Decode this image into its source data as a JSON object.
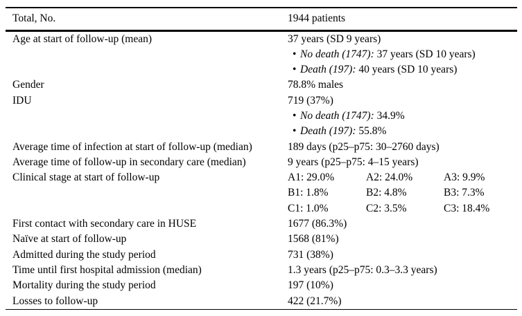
{
  "table": {
    "bullet_glyph": "•",
    "colors": {
      "text": "#000000",
      "background": "#ffffff",
      "rule": "#000000"
    },
    "header": {
      "label": "Total, No.",
      "value": "1944 patients"
    },
    "rows": [
      {
        "label": "Age at start of follow-up (mean)",
        "lines": [
          {
            "type": "text",
            "text": "37 years (SD 9 years)"
          },
          {
            "type": "bullet",
            "italic": "No death (1747):",
            "text": "37 years (SD 10 years)"
          },
          {
            "type": "bullet",
            "italic": "Death (197):",
            "text": "40 years (SD 10 years)"
          }
        ]
      },
      {
        "label": "Gender",
        "lines": [
          {
            "type": "text",
            "text": "78.8% males"
          }
        ]
      },
      {
        "label": "IDU",
        "lines": [
          {
            "type": "text",
            "text": "719 (37%)"
          },
          {
            "type": "bullet",
            "italic": "No death (1747):",
            "text": "34.9%"
          },
          {
            "type": "bullet",
            "italic": "Death (197):",
            "text": "55.8%"
          }
        ]
      },
      {
        "label": "Average time of infection at start of follow-up (median)",
        "lines": [
          {
            "type": "text",
            "text": "189 days (p25–p75: 30–2760 days)"
          }
        ]
      },
      {
        "label": "Average time of follow-up in secondary care (median)",
        "lines": [
          {
            "type": "text",
            "text": "9 years (p25–p75: 4–15 years)"
          }
        ]
      },
      {
        "label": "Clinical stage at start of follow-up",
        "lines": [
          {
            "type": "cols",
            "cells": [
              "A1: 29.0%",
              "A2: 24.0%",
              "A3: 9.9%"
            ]
          },
          {
            "type": "cols",
            "cells": [
              "B1: 1.8%",
              "B2: 4.8%",
              "B3: 7.3%"
            ]
          },
          {
            "type": "cols",
            "cells": [
              "C1: 1.0%",
              "C2: 3.5%",
              "C3: 18.4%"
            ]
          }
        ]
      },
      {
        "label": "First contact with secondary care in HUSE",
        "lines": [
          {
            "type": "text",
            "text": "1677 (86.3%)"
          }
        ]
      },
      {
        "label": "Naïve at start of follow-up",
        "lines": [
          {
            "type": "text",
            "text": "1568 (81%)"
          }
        ]
      },
      {
        "label": "Admitted during the study period",
        "lines": [
          {
            "type": "text",
            "text": "731 (38%)"
          }
        ]
      },
      {
        "label": "Time until first hospital admission (median)",
        "lines": [
          {
            "type": "text",
            "text": "1.3 years (p25–p75: 0.3–3.3 years)"
          }
        ]
      },
      {
        "label": "Mortality during the study period",
        "lines": [
          {
            "type": "text",
            "text": "197 (10%)"
          }
        ]
      },
      {
        "label": "Losses to follow-up",
        "lines": [
          {
            "type": "text",
            "text": "422 (21.7%)"
          }
        ]
      }
    ]
  }
}
